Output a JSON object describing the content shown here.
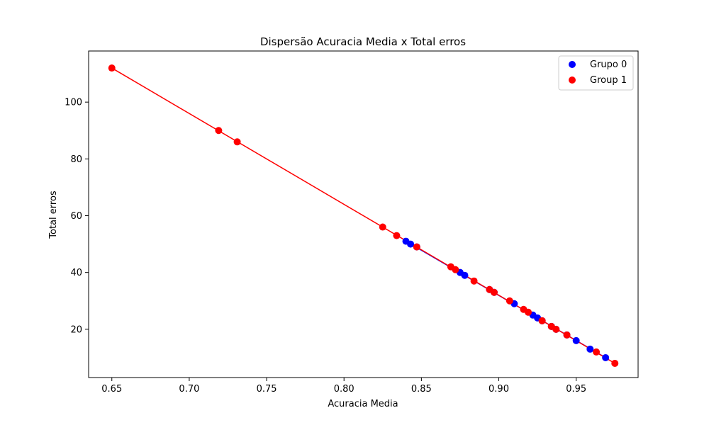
{
  "chart_data": {
    "type": "scatter",
    "title": "Dispersão Acuracia Media x Total erros",
    "xlabel": "Acuracia Media",
    "ylabel": "Total erros",
    "xlim": [
      0.635,
      0.99
    ],
    "ylim": [
      3,
      118
    ],
    "xticks": [
      0.65,
      0.7,
      0.75,
      0.8,
      0.85,
      0.9,
      0.95
    ],
    "xtick_labels": [
      "0.65",
      "0.70",
      "0.75",
      "0.80",
      "0.85",
      "0.90",
      "0.95"
    ],
    "yticks": [
      20,
      40,
      60,
      80,
      100
    ],
    "ytick_labels": [
      "20",
      "40",
      "60",
      "80",
      "100"
    ],
    "grid": false,
    "legend_position": "top-right",
    "series": [
      {
        "name": "Grupo 0",
        "color": "#0000ff",
        "points": [
          [
            0.84,
            51
          ],
          [
            0.843,
            50
          ],
          [
            0.847,
            49
          ],
          [
            0.875,
            40
          ],
          [
            0.878,
            39
          ],
          [
            0.894,
            34
          ],
          [
            0.897,
            33
          ],
          [
            0.91,
            29
          ],
          [
            0.922,
            25
          ],
          [
            0.925,
            24
          ],
          [
            0.928,
            23
          ],
          [
            0.934,
            21
          ],
          [
            0.937,
            20
          ],
          [
            0.944,
            18
          ],
          [
            0.95,
            16
          ],
          [
            0.959,
            13
          ],
          [
            0.969,
            10
          ]
        ]
      },
      {
        "name": "Group 1",
        "color": "#ff0000",
        "points": [
          [
            0.65,
            112
          ],
          [
            0.719,
            90
          ],
          [
            0.731,
            86
          ],
          [
            0.825,
            56
          ],
          [
            0.834,
            53
          ],
          [
            0.847,
            49
          ],
          [
            0.869,
            42
          ],
          [
            0.872,
            41
          ],
          [
            0.884,
            37
          ],
          [
            0.894,
            34
          ],
          [
            0.897,
            33
          ],
          [
            0.907,
            30
          ],
          [
            0.916,
            27
          ],
          [
            0.919,
            26
          ],
          [
            0.928,
            23
          ],
          [
            0.934,
            21
          ],
          [
            0.937,
            20
          ],
          [
            0.944,
            18
          ],
          [
            0.963,
            12
          ],
          [
            0.975,
            8
          ]
        ]
      }
    ],
    "lines": [
      {
        "color": "#0000ff",
        "points": [
          [
            0.84,
            51
          ],
          [
            0.969,
            10
          ]
        ]
      },
      {
        "color": "#ff0000",
        "points": [
          [
            0.65,
            112
          ],
          [
            0.975,
            8
          ]
        ]
      }
    ]
  }
}
